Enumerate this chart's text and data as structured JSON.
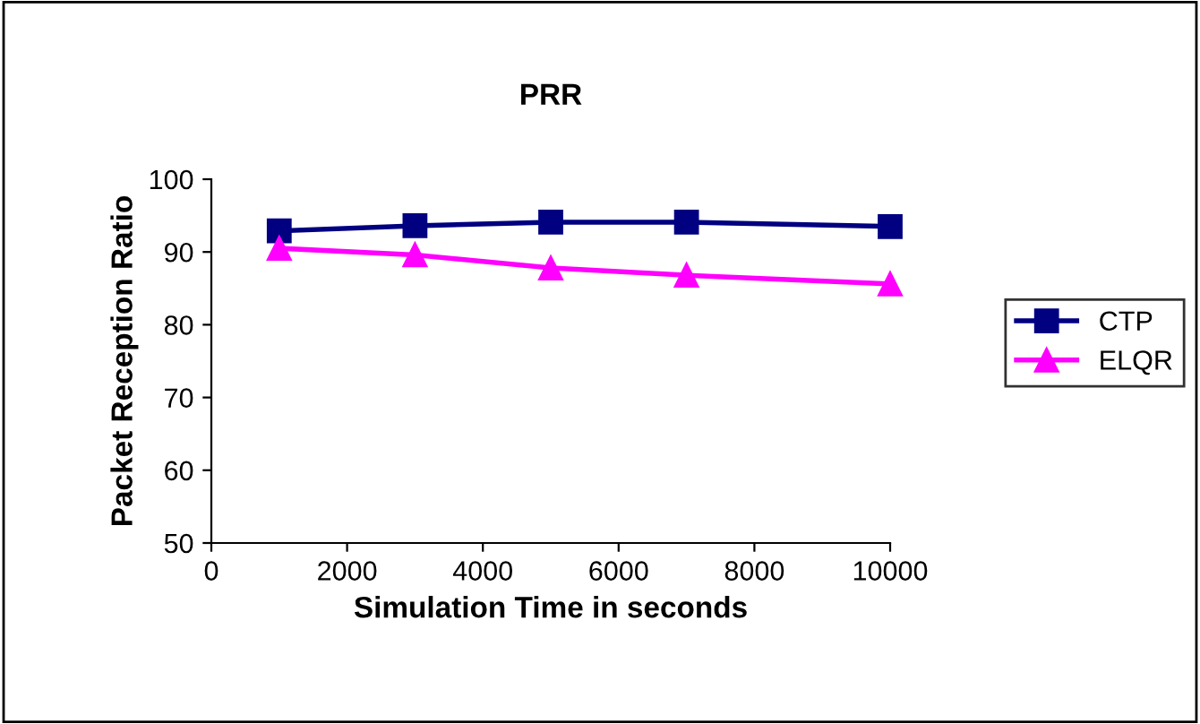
{
  "chart_data": {
    "type": "line",
    "title": "PRR",
    "xlabel": "Simulation Time in seconds",
    "ylabel": "Packet Reception Ratio",
    "x": [
      1000,
      3000,
      5000,
      7000,
      10000
    ],
    "series": [
      {
        "name": "CTP",
        "color": "#000080",
        "marker": "square",
        "values": [
          92.9,
          93.6,
          94.1,
          94.1,
          93.5
        ]
      },
      {
        "name": "ELQR",
        "color": "#ff00ff",
        "marker": "triangle",
        "values": [
          90.5,
          89.6,
          87.8,
          86.8,
          85.6
        ]
      }
    ],
    "xlim": [
      0,
      10000
    ],
    "xticks": [
      0,
      2000,
      4000,
      6000,
      8000,
      10000
    ],
    "ylim": [
      50,
      100
    ],
    "yticks": [
      50,
      60,
      70,
      80,
      90,
      100
    ],
    "grid": false,
    "legend": "right"
  }
}
